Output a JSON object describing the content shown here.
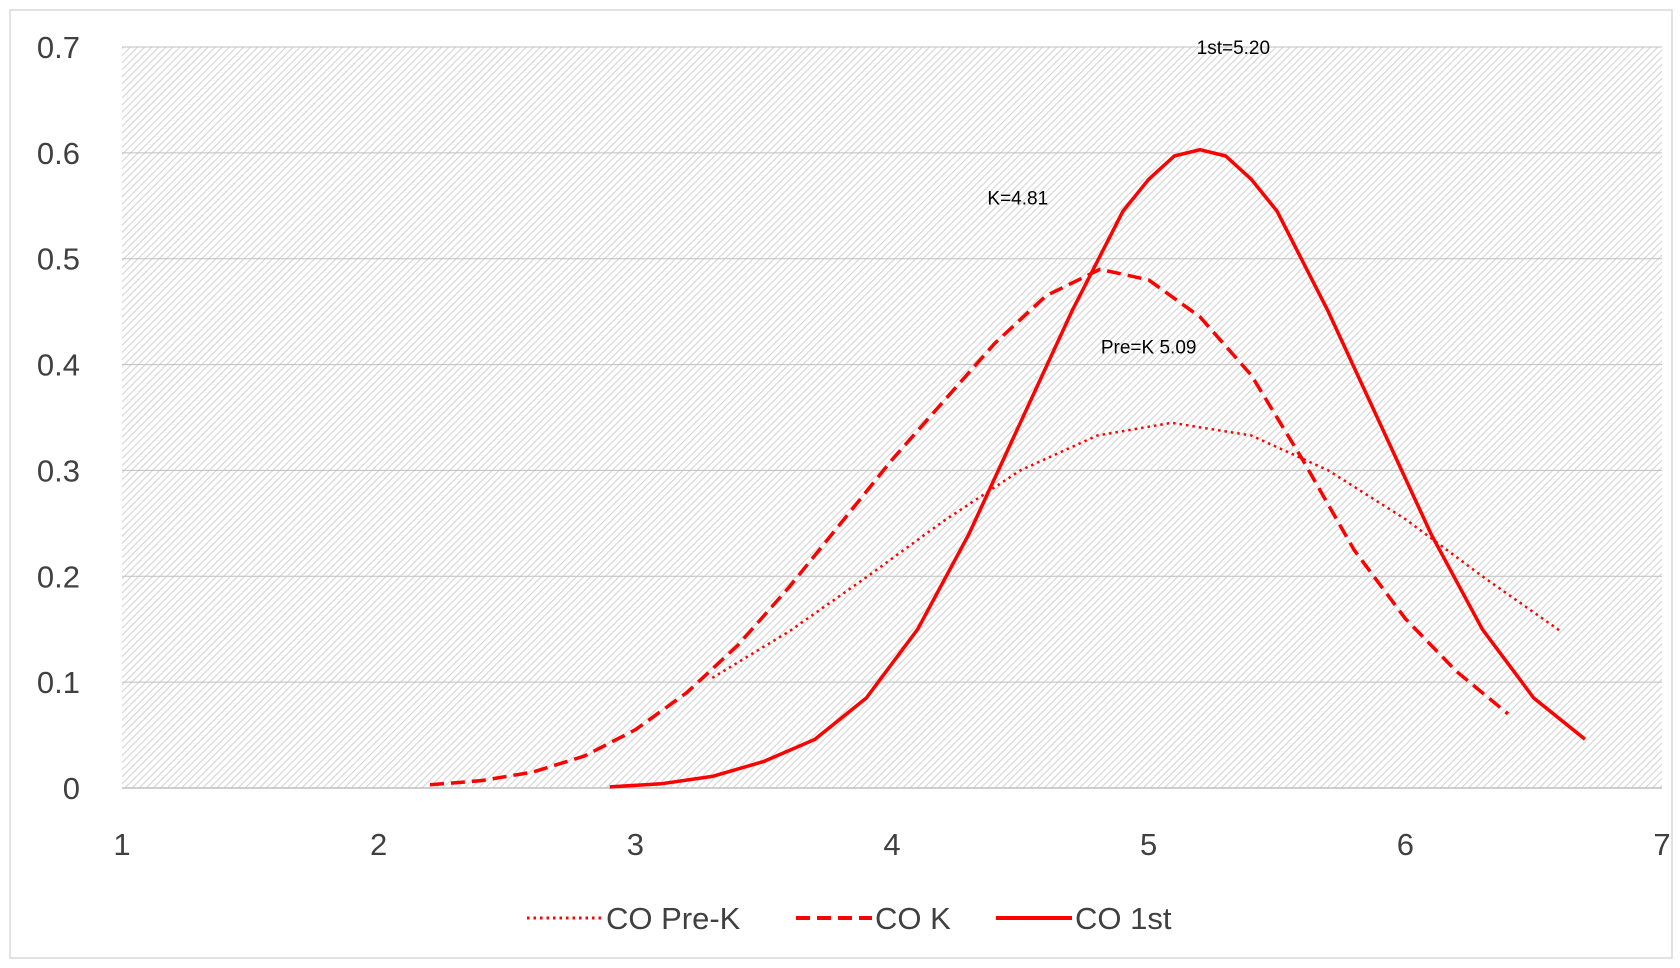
{
  "chart_data": {
    "type": "line",
    "title": "",
    "xlabel": "",
    "ylabel": "",
    "xlim": [
      1,
      7
    ],
    "ylim": [
      0,
      0.7
    ],
    "x_ticks": [
      "1",
      "2",
      "3",
      "4",
      "5",
      "6",
      "7"
    ],
    "y_ticks": [
      "0",
      "0.1",
      "0.2",
      "0.3",
      "0.4",
      "0.5",
      "0.6",
      "0.7"
    ],
    "grid": "hatched background",
    "legend_position": "bottom",
    "colors": {
      "series": "#ff0000",
      "grid_bg": "#d9d9d9"
    },
    "series": [
      {
        "name": "CO Pre-K",
        "dash": "dotted",
        "points": [
          [
            3.3,
            0.104
          ],
          [
            3.6,
            0.148
          ],
          [
            3.9,
            0.199
          ],
          [
            4.2,
            0.252
          ],
          [
            4.5,
            0.3
          ],
          [
            4.8,
            0.333
          ],
          [
            5.09,
            0.345
          ],
          [
            5.4,
            0.333
          ],
          [
            5.7,
            0.3
          ],
          [
            6.0,
            0.254
          ],
          [
            6.3,
            0.2
          ],
          [
            6.6,
            0.149
          ]
        ]
      },
      {
        "name": "CO K",
        "dash": "dashed",
        "points": [
          [
            2.2,
            0.003
          ],
          [
            2.4,
            0.007
          ],
          [
            2.6,
            0.015
          ],
          [
            2.8,
            0.03
          ],
          [
            3.0,
            0.055
          ],
          [
            3.2,
            0.09
          ],
          [
            3.4,
            0.135
          ],
          [
            3.6,
            0.19
          ],
          [
            3.8,
            0.25
          ],
          [
            4.0,
            0.31
          ],
          [
            4.2,
            0.365
          ],
          [
            4.4,
            0.42
          ],
          [
            4.6,
            0.465
          ],
          [
            4.81,
            0.49
          ],
          [
            5.0,
            0.48
          ],
          [
            5.2,
            0.445
          ],
          [
            5.4,
            0.39
          ],
          [
            5.6,
            0.31
          ],
          [
            5.8,
            0.225
          ],
          [
            6.0,
            0.16
          ],
          [
            6.2,
            0.11
          ],
          [
            6.4,
            0.07
          ]
        ]
      },
      {
        "name": "CO 1st",
        "dash": "solid",
        "points": [
          [
            2.9,
            0.001
          ],
          [
            3.1,
            0.004
          ],
          [
            3.3,
            0.011
          ],
          [
            3.5,
            0.025
          ],
          [
            3.7,
            0.046
          ],
          [
            3.9,
            0.085
          ],
          [
            4.1,
            0.15
          ],
          [
            4.3,
            0.24
          ],
          [
            4.5,
            0.345
          ],
          [
            4.7,
            0.45
          ],
          [
            4.9,
            0.545
          ],
          [
            5.0,
            0.575
          ],
          [
            5.1,
            0.597
          ],
          [
            5.2,
            0.603
          ],
          [
            5.3,
            0.597
          ],
          [
            5.4,
            0.575
          ],
          [
            5.5,
            0.545
          ],
          [
            5.7,
            0.45
          ],
          [
            5.9,
            0.345
          ],
          [
            6.1,
            0.24
          ],
          [
            6.3,
            0.15
          ],
          [
            6.5,
            0.085
          ],
          [
            6.7,
            0.046
          ]
        ]
      }
    ],
    "annotations": [
      {
        "text": "1st=5.20",
        "x": 5.33,
        "y": 0.7
      },
      {
        "text": "K=4.81",
        "x": 4.49,
        "y": 0.558
      },
      {
        "text": "Pre=K 5.09",
        "x": 5.0,
        "y": 0.417
      }
    ]
  }
}
